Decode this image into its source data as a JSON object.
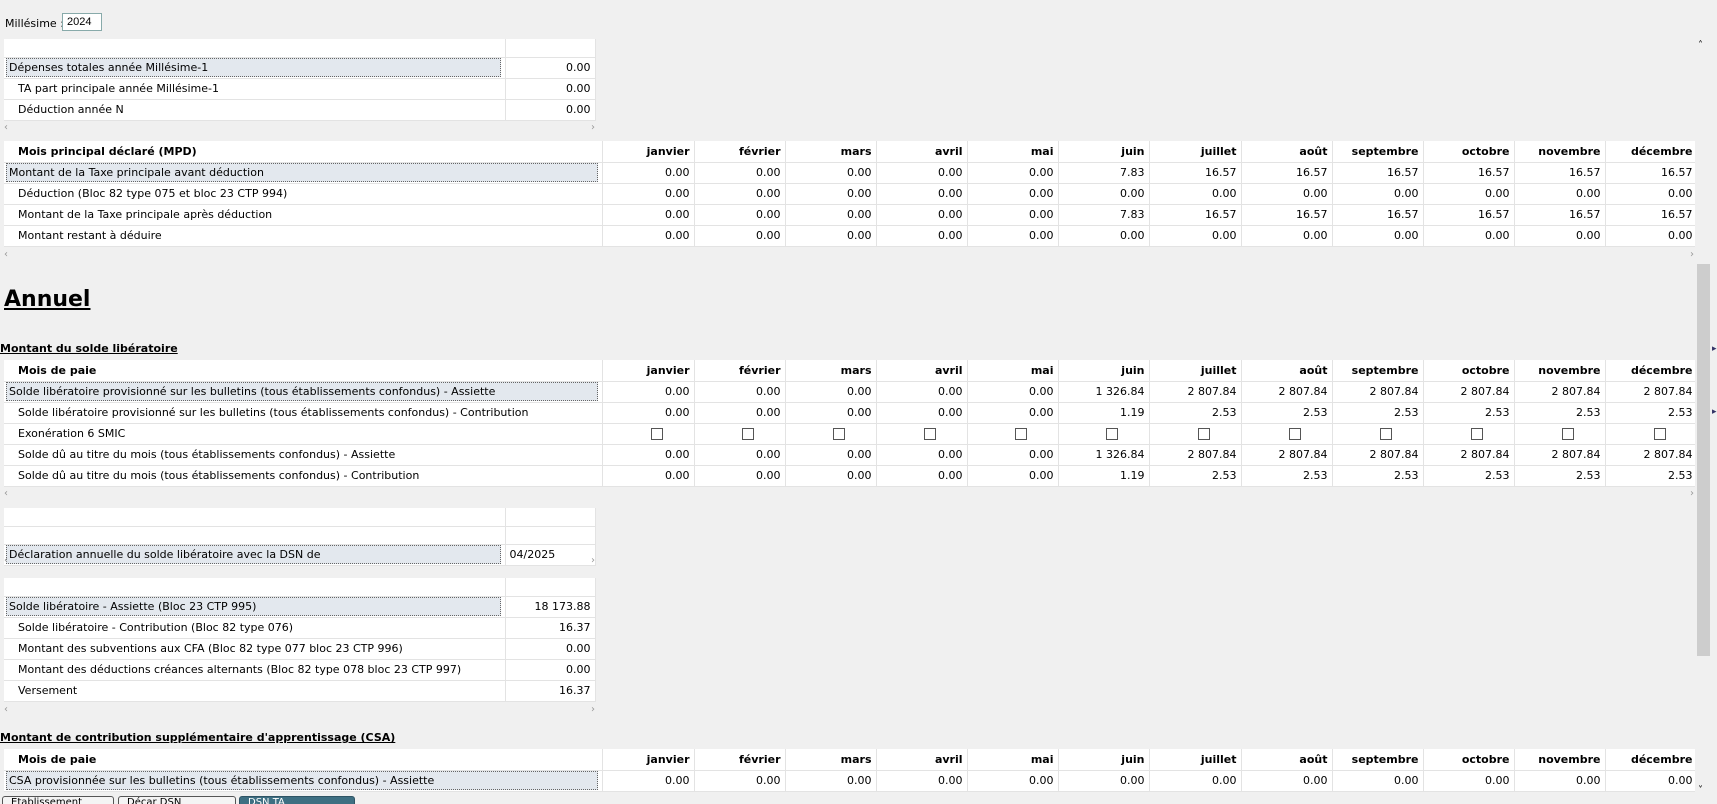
{
  "millesime": {
    "label": "Millésime :",
    "value": "2024"
  },
  "months": [
    "janvier",
    "février",
    "mars",
    "avril",
    "mai",
    "juin",
    "juillet",
    "août",
    "septembre",
    "octobre",
    "novembre",
    "décembre"
  ],
  "top_table": {
    "rows": [
      {
        "label": "Dépenses totales année Millésime-1",
        "value": "0.00"
      },
      {
        "label": "TA part principale année Millésime-1",
        "value": "0.00"
      },
      {
        "label": "Déduction année N",
        "value": "0.00"
      }
    ]
  },
  "mpd_table": {
    "header": "Mois principal déclaré (MPD)",
    "rows": [
      {
        "label": "Montant de la Taxe principale avant déduction",
        "values": [
          "0.00",
          "0.00",
          "0.00",
          "0.00",
          "0.00",
          "7.83",
          "16.57",
          "16.57",
          "16.57",
          "16.57",
          "16.57",
          "16.57"
        ]
      },
      {
        "label": "Déduction (Bloc 82 type 075 et bloc 23 CTP 994)",
        "values": [
          "0.00",
          "0.00",
          "0.00",
          "0.00",
          "0.00",
          "0.00",
          "0.00",
          "0.00",
          "0.00",
          "0.00",
          "0.00",
          "0.00"
        ]
      },
      {
        "label": "Montant de la Taxe principale après déduction",
        "values": [
          "0.00",
          "0.00",
          "0.00",
          "0.00",
          "0.00",
          "7.83",
          "16.57",
          "16.57",
          "16.57",
          "16.57",
          "16.57",
          "16.57"
        ]
      },
      {
        "label": "Montant restant à déduire",
        "values": [
          "0.00",
          "0.00",
          "0.00",
          "0.00",
          "0.00",
          "0.00",
          "0.00",
          "0.00",
          "0.00",
          "0.00",
          "0.00",
          "0.00"
        ]
      }
    ]
  },
  "annuel": {
    "title": "Annuel",
    "solde_title": "Montant du solde libératoire",
    "solde_table": {
      "header": "Mois de paie",
      "rows": [
        {
          "label": "Solde libératoire provisionné sur les bulletins (tous établissements confondus) - Assiette",
          "values": [
            "0.00",
            "0.00",
            "0.00",
            "0.00",
            "0.00",
            "1 326.84",
            "2 807.84",
            "2 807.84",
            "2 807.84",
            "2 807.84",
            "2 807.84",
            "2 807.84"
          ]
        },
        {
          "label": "Solde libératoire provisionné sur les bulletins (tous établissements confondus) - Contribution",
          "values": [
            "0.00",
            "0.00",
            "0.00",
            "0.00",
            "0.00",
            "1.19",
            "2.53",
            "2.53",
            "2.53",
            "2.53",
            "2.53",
            "2.53"
          ]
        },
        {
          "label": "Exonération 6 SMIC",
          "checkbox": true
        },
        {
          "label": "Solde dû au titre du mois (tous établissements confondus) - Assiette",
          "values": [
            "0.00",
            "0.00",
            "0.00",
            "0.00",
            "0.00",
            "1 326.84",
            "2 807.84",
            "2 807.84",
            "2 807.84",
            "2 807.84",
            "2 807.84",
            "2 807.84"
          ]
        },
        {
          "label": "Solde dû au titre du mois (tous établissements confondus) - Contribution",
          "values": [
            "0.00",
            "0.00",
            "0.00",
            "0.00",
            "0.00",
            "1.19",
            "2.53",
            "2.53",
            "2.53",
            "2.53",
            "2.53",
            "2.53"
          ]
        }
      ]
    },
    "declaration": {
      "label": "Déclaration annuelle du solde libératoire avec la DSN de",
      "value": "04/2025"
    },
    "summary_rows": [
      {
        "label": "Solde libératoire - Assiette (Bloc 23 CTP 995)",
        "value": "18 173.88"
      },
      {
        "label": "Solde libératoire - Contribution (Bloc 82 type 076)",
        "value": "16.37"
      },
      {
        "label": "Montant des subventions aux CFA (Bloc 82 type 077 bloc 23 CTP 996)",
        "value": "0.00"
      },
      {
        "label": "Montant des déductions créances alternants (Bloc 82 type 078 bloc 23 CTP 997)",
        "value": "0.00"
      },
      {
        "label": "Versement",
        "value": "16.37"
      }
    ],
    "csa_title": "Montant de contribution supplémentaire d'apprentissage (CSA)",
    "csa_table": {
      "header": "Mois de paie",
      "rows": [
        {
          "label": "CSA provisionnée sur les bulletins (tous établissements confondus) - Assiette",
          "values": [
            "0.00",
            "0.00",
            "0.00",
            "0.00",
            "0.00",
            "0.00",
            "0.00",
            "0.00",
            "0.00",
            "0.00",
            "0.00",
            "0.00"
          ]
        }
      ]
    }
  },
  "scroll": {
    "left": "‹",
    "right": "›",
    "up": "˄",
    "down": "˅"
  },
  "bottom_tabs": [
    {
      "label": "Etablissement"
    },
    {
      "label": "Décar DSN"
    },
    {
      "label": "DSN TA"
    }
  ]
}
